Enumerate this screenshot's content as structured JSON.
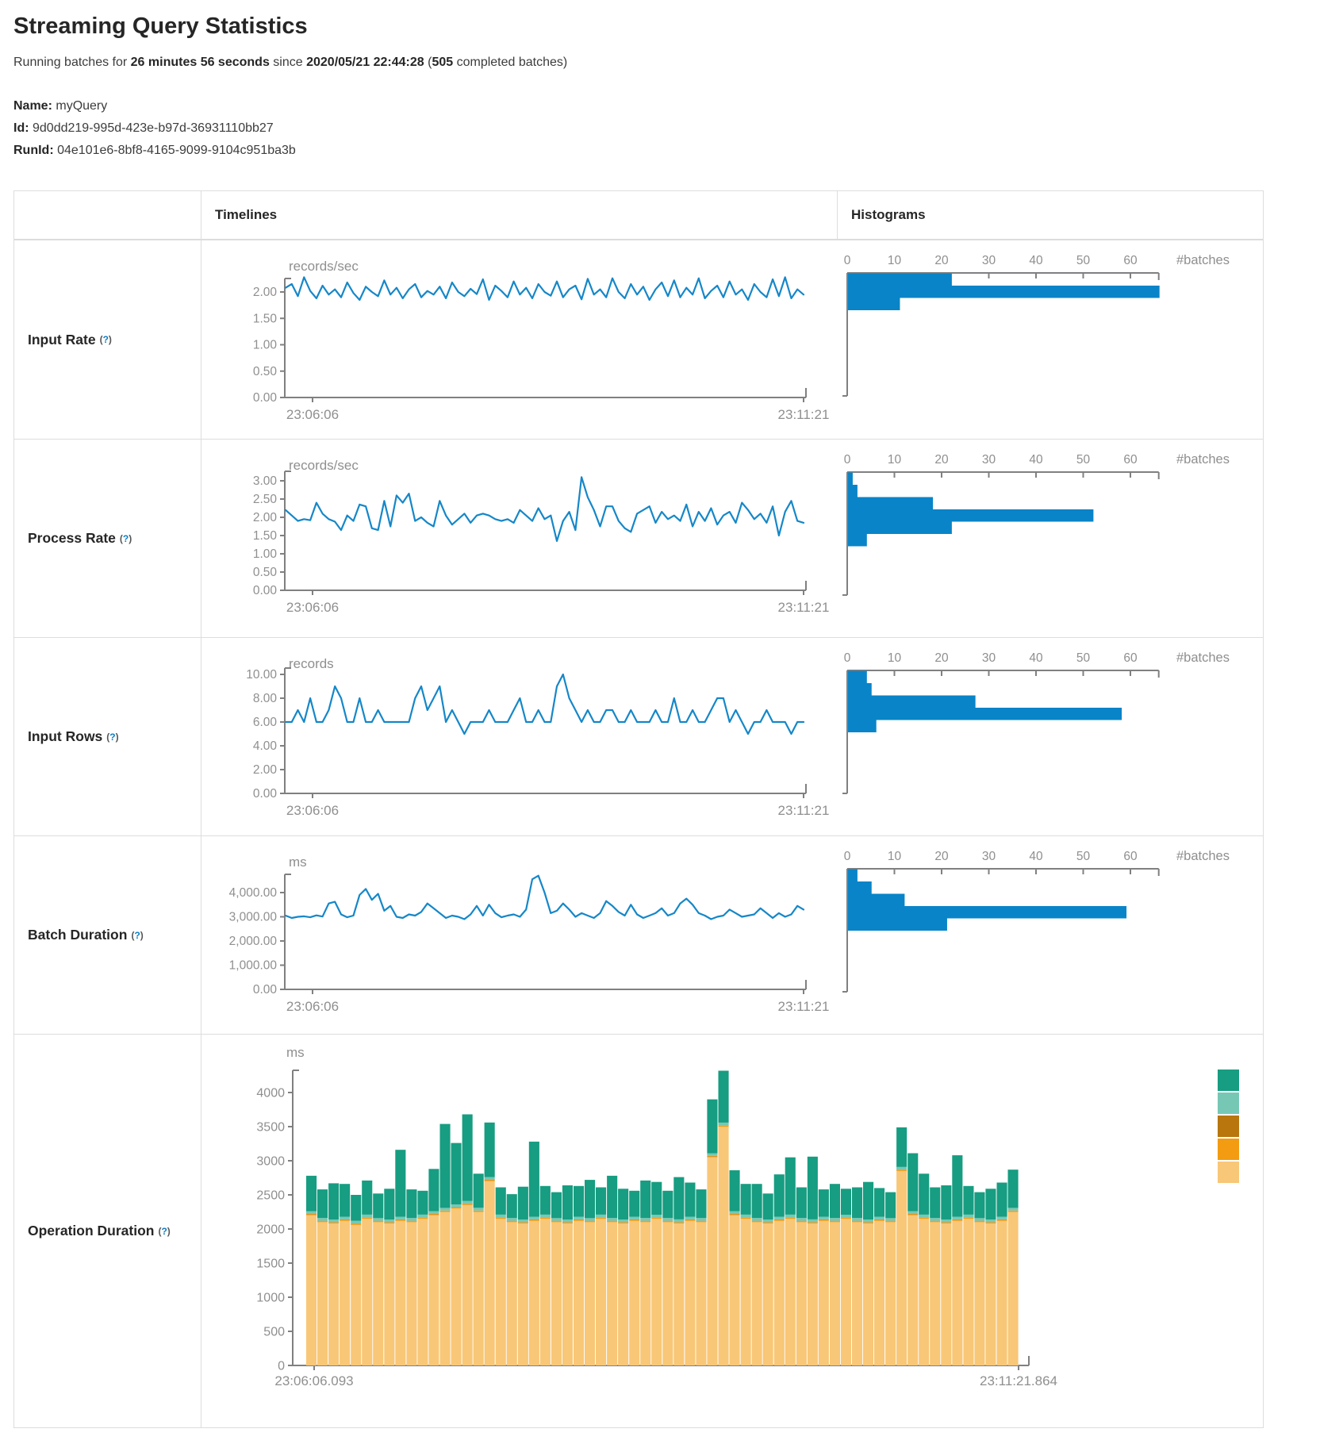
{
  "page": {
    "title": "Streaming Query Statistics",
    "subtitle": {
      "prefix": "Running batches for ",
      "duration": "26 minutes 56 seconds",
      "middle": " since ",
      "start_time": "2020/05/21 22:44:28",
      "paren_open": " (",
      "completed_count": "505",
      "suffix": " completed batches)"
    },
    "info": [
      {
        "label": "Name:",
        "value": "myQuery"
      },
      {
        "label": "Id:",
        "value": "9d0dd219-995d-423e-b97d-36931110bb27"
      },
      {
        "label": "RunId:",
        "value": "04e101e6-8bf8-4165-9099-9104c951ba3b"
      }
    ]
  },
  "table": {
    "columns": {
      "timelines": "Timelines",
      "histograms": "Histograms"
    },
    "help_marker": {
      "open": "(",
      "q": "?",
      "close": ")"
    },
    "rows": [
      "Input Rate",
      "Process Rate",
      "Input Rows",
      "Batch Duration",
      "Operation Duration"
    ]
  },
  "colors": {
    "line": "#1587c8",
    "hist_bar": "#0984c8",
    "axis": "#808080",
    "tick_text": "#8f8f8f",
    "operation_series": {
      "teal": "#179d81",
      "light_teal": "#76c8b4",
      "brown": "#b8760d",
      "orange": "#f39c11",
      "tan": "#f8c777"
    }
  },
  "chart_data": {
    "input_rate": {
      "timeline": {
        "type": "line",
        "unit": "records/sec",
        "y_tick_labels": [
          "2.00",
          "1.50",
          "1.00",
          "0.50",
          "0.00"
        ],
        "y_tick_values": [
          2,
          1.5,
          1,
          0.5,
          0
        ],
        "ylim": [
          0,
          2.26
        ],
        "x_start_label": "23:06:06",
        "x_end_label": "23:11:21",
        "values": [
          2.08,
          2.15,
          1.92,
          2.28,
          2.02,
          1.88,
          2.12,
          1.95,
          2.05,
          1.9,
          2.18,
          1.98,
          1.85,
          2.1,
          2.0,
          1.92,
          2.22,
          1.95,
          2.08,
          1.88,
          2.05,
          2.15,
          1.9,
          2.02,
          1.95,
          2.1,
          1.88,
          2.18,
          2.0,
          1.92,
          2.06,
          1.96,
          2.24,
          1.85,
          2.12,
          2.02,
          1.9,
          2.2,
          1.95,
          2.08,
          1.88,
          2.15,
          2.0,
          1.93,
          2.2,
          1.9,
          2.05,
          2.12,
          1.86,
          2.25,
          1.95,
          2.05,
          1.9,
          2.26,
          2.0,
          1.88,
          2.15,
          1.95,
          2.1,
          1.85,
          2.05,
          2.18,
          1.92,
          2.22,
          1.9,
          2.08,
          1.95,
          2.26,
          1.88,
          2.02,
          2.12,
          1.9,
          2.2,
          1.95,
          2.05,
          1.85,
          2.15,
          2.0,
          1.9,
          2.24,
          1.92,
          2.28,
          1.88,
          2.05,
          1.95
        ]
      },
      "histogram": {
        "type": "bar",
        "orientation": "horizontal",
        "xlabel": "#batches",
        "x_tick_values": [
          0,
          10,
          20,
          30,
          40,
          50,
          60
        ],
        "xlim": [
          0,
          66
        ],
        "values": [
          22,
          66,
          11
        ]
      }
    },
    "process_rate": {
      "timeline": {
        "type": "line",
        "unit": "records/sec",
        "y_tick_labels": [
          "3.00",
          "2.50",
          "2.00",
          "1.50",
          "1.00",
          "0.50",
          "0.00"
        ],
        "y_tick_values": [
          3,
          2.5,
          2,
          1.5,
          1,
          0.5,
          0
        ],
        "ylim": [
          0,
          3.26
        ],
        "x_start_label": "23:06:06",
        "x_end_label": "23:11:21",
        "values": [
          2.2,
          2.05,
          1.9,
          1.95,
          1.92,
          2.4,
          2.1,
          1.95,
          1.88,
          1.65,
          2.05,
          1.9,
          2.35,
          2.3,
          1.7,
          1.65,
          2.45,
          1.75,
          2.6,
          2.4,
          2.65,
          1.9,
          2.0,
          1.85,
          1.75,
          2.45,
          2.05,
          1.8,
          1.95,
          2.1,
          1.85,
          2.05,
          2.1,
          2.05,
          1.95,
          1.9,
          1.95,
          1.85,
          2.2,
          2.05,
          1.9,
          2.25,
          1.95,
          2.05,
          1.35,
          1.9,
          2.15,
          1.65,
          3.1,
          2.55,
          2.2,
          1.75,
          2.3,
          2.3,
          1.9,
          1.7,
          1.6,
          2.1,
          2.2,
          2.3,
          1.85,
          2.15,
          1.95,
          2.05,
          1.9,
          2.35,
          1.75,
          2.15,
          1.9,
          2.25,
          1.8,
          2.05,
          2.15,
          1.85,
          2.4,
          2.2,
          1.95,
          2.1,
          1.85,
          2.3,
          1.5,
          2.15,
          2.45,
          1.9,
          1.85
        ]
      },
      "histogram": {
        "type": "bar",
        "orientation": "horizontal",
        "xlabel": "#batches",
        "x_tick_values": [
          0,
          10,
          20,
          30,
          40,
          50,
          60
        ],
        "xlim": [
          0,
          66
        ],
        "values": [
          1,
          2,
          18,
          52,
          22,
          4
        ]
      }
    },
    "input_rows": {
      "timeline": {
        "type": "line",
        "unit": "records",
        "y_tick_labels": [
          "10.00",
          "8.00",
          "6.00",
          "4.00",
          "2.00",
          "0.00"
        ],
        "y_tick_values": [
          10,
          8,
          6,
          4,
          2,
          0
        ],
        "ylim": [
          0,
          10.5
        ],
        "x_start_label": "23:06:06",
        "x_end_label": "23:11:21",
        "values": [
          6,
          6,
          7,
          6,
          8,
          6,
          6,
          7,
          9,
          8,
          6,
          6,
          8,
          6,
          6,
          7,
          6,
          6,
          6,
          6,
          6,
          8,
          9,
          7,
          8,
          9,
          6,
          7,
          6,
          5,
          6,
          6,
          6,
          7,
          6,
          6,
          6,
          7,
          8,
          6,
          6,
          7,
          6,
          6,
          9,
          10,
          8,
          7,
          6,
          7,
          6,
          6,
          7,
          7,
          6,
          6,
          7,
          6,
          6,
          6,
          7,
          6,
          6,
          8,
          6,
          6,
          7,
          6,
          6,
          7,
          8,
          8,
          6,
          7,
          6,
          5,
          6,
          6,
          7,
          6,
          6,
          6,
          5,
          6,
          6
        ]
      },
      "histogram": {
        "type": "bar",
        "orientation": "horizontal",
        "xlabel": "#batches",
        "x_tick_values": [
          0,
          10,
          20,
          30,
          40,
          50,
          60
        ],
        "xlim": [
          0,
          66
        ],
        "values": [
          4,
          5,
          27,
          58,
          6
        ]
      }
    },
    "batch_duration": {
      "timeline": {
        "type": "line",
        "unit": "ms",
        "y_tick_labels": [
          "4,000.00",
          "3,000.00",
          "2,000.00",
          "1,000.00",
          "0.00"
        ],
        "y_tick_values": [
          4000,
          3000,
          2000,
          1000,
          0
        ],
        "ylim": [
          0,
          4750
        ],
        "x_start_label": "23:06:06",
        "x_end_label": "23:11:21",
        "values": [
          3050,
          2950,
          3000,
          3020,
          2980,
          3060,
          3010,
          3550,
          3620,
          3100,
          2980,
          3050,
          3900,
          4150,
          3700,
          3950,
          3250,
          3450,
          3000,
          2950,
          3100,
          3050,
          3200,
          3550,
          3350,
          3150,
          2950,
          3050,
          3000,
          2900,
          3100,
          3450,
          3050,
          3500,
          3150,
          2980,
          3050,
          3100,
          3000,
          3300,
          4550,
          4700,
          4000,
          3150,
          3250,
          3550,
          3300,
          3000,
          3150,
          3050,
          2950,
          3150,
          3650,
          3450,
          3200,
          3050,
          3500,
          3100,
          2950,
          3050,
          3150,
          3350,
          3050,
          3150,
          3550,
          3750,
          3500,
          3150,
          3050,
          2900,
          3000,
          3050,
          3300,
          3150,
          3000,
          3050,
          3100,
          3350,
          3150,
          2950,
          3150,
          3000,
          3100,
          3450,
          3300
        ]
      },
      "histogram": {
        "type": "bar",
        "orientation": "horizontal",
        "xlabel": "#batches",
        "x_tick_values": [
          0,
          10,
          20,
          30,
          40,
          50,
          60
        ],
        "xlim": [
          0,
          66
        ],
        "values": [
          2,
          5,
          12,
          59,
          21
        ]
      }
    },
    "operation_duration": {
      "type": "stacked-bar",
      "unit": "ms",
      "y_tick_labels": [
        "4000",
        "3500",
        "3000",
        "2500",
        "2000",
        "1500",
        "1000",
        "500",
        "0"
      ],
      "y_tick_values": [
        4000,
        3500,
        3000,
        2500,
        2000,
        1500,
        1000,
        500,
        0
      ],
      "ylim": [
        0,
        4326
      ],
      "x_start_label": "23:06:06.093",
      "x_end_label": "23:11:21.864",
      "series_order_bottom_to_top": [
        "tan",
        "orange",
        "brown",
        "light_teal",
        "teal"
      ],
      "legend_top_to_bottom": [
        "teal",
        "light_teal",
        "brown",
        "orange",
        "tan"
      ],
      "series": {
        "tan": [
          2200,
          2100,
          2080,
          2120,
          2060,
          2150,
          2100,
          2080,
          2120,
          2100,
          2150,
          2200,
          2250,
          2300,
          2350,
          2250,
          2700,
          2150,
          2100,
          2080,
          2120,
          2150,
          2100,
          2080,
          2120,
          2100,
          2150,
          2100,
          2080,
          2120,
          2100,
          2150,
          2100,
          2080,
          2120,
          2100,
          3050,
          3500,
          2200,
          2150,
          2100,
          2080,
          2120,
          2150,
          2100,
          2080,
          2120,
          2100,
          2150,
          2100,
          2080,
          2120,
          2100,
          2850,
          2200,
          2150,
          2100,
          2080,
          2120,
          2150,
          2100,
          2080,
          2120,
          2250
        ],
        "orange": [
          15,
          15,
          15,
          15,
          15,
          15,
          15,
          15,
          15,
          15,
          15,
          15,
          15,
          15,
          15,
          15,
          15,
          15,
          15,
          15,
          15,
          15,
          15,
          15,
          15,
          15,
          15,
          15,
          15,
          15,
          15,
          15,
          15,
          15,
          15,
          15,
          15,
          15,
          15,
          15,
          15,
          15,
          15,
          15,
          15,
          15,
          15,
          15,
          15,
          15,
          15,
          15,
          15,
          15,
          15,
          15,
          15,
          15,
          15,
          15,
          15,
          15,
          15,
          15
        ],
        "brown": [
          5,
          5,
          5,
          5,
          5,
          5,
          5,
          5,
          5,
          5,
          5,
          5,
          5,
          5,
          5,
          5,
          5,
          5,
          5,
          5,
          5,
          5,
          5,
          5,
          5,
          5,
          5,
          5,
          5,
          5,
          5,
          5,
          5,
          5,
          5,
          5,
          5,
          5,
          5,
          5,
          5,
          5,
          5,
          5,
          5,
          5,
          5,
          5,
          5,
          5,
          5,
          5,
          5,
          5,
          5,
          5,
          5,
          5,
          5,
          5,
          5,
          5,
          5,
          5
        ],
        "light_teal": [
          40,
          40,
          40,
          40,
          40,
          40,
          40,
          40,
          40,
          40,
          40,
          40,
          40,
          40,
          40,
          40,
          40,
          40,
          40,
          40,
          40,
          40,
          40,
          40,
          40,
          40,
          40,
          40,
          40,
          40,
          40,
          40,
          40,
          40,
          40,
          40,
          40,
          40,
          40,
          40,
          40,
          40,
          40,
          40,
          40,
          40,
          40,
          40,
          40,
          40,
          40,
          40,
          40,
          40,
          40,
          40,
          40,
          40,
          40,
          40,
          40,
          40,
          40,
          40
        ],
        "teal": [
          520,
          420,
          530,
          480,
          380,
          500,
          360,
          450,
          980,
          420,
          350,
          620,
          1230,
          900,
          1270,
          500,
          800,
          400,
          350,
          480,
          1100,
          420,
          380,
          500,
          450,
          560,
          400,
          620,
          450,
          380,
          550,
          480,
          400,
          620,
          500,
          420,
          790,
          760,
          600,
          450,
          500,
          380,
          620,
          840,
          450,
          920,
          400,
          500,
          380,
          450,
          550,
          420,
          380,
          580,
          850,
          600,
          450,
          500,
          900,
          420,
          380,
          450,
          500,
          560
        ]
      }
    }
  }
}
